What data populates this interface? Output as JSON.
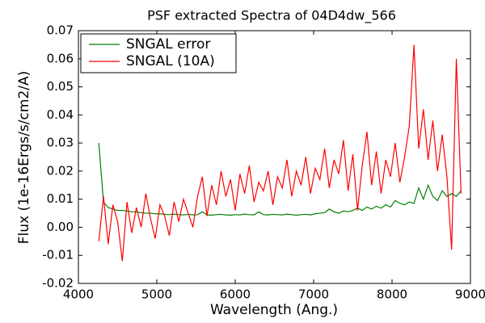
{
  "chart_data": {
    "type": "line",
    "title": "PSF extracted Spectra of 04D4dw_566",
    "xlabel": "Wavelength (Ang.)",
    "ylabel": "Flux (1e-16Ergs/s/cm2/A)",
    "x": [
      4260,
      4320,
      4380,
      4440,
      4500,
      4560,
      4620,
      4680,
      4740,
      4800,
      4860,
      4920,
      4980,
      5040,
      5100,
      5160,
      5220,
      5280,
      5340,
      5400,
      5460,
      5520,
      5580,
      5640,
      5700,
      5760,
      5820,
      5880,
      5940,
      6000,
      6060,
      6120,
      6180,
      6240,
      6300,
      6360,
      6420,
      6480,
      6540,
      6600,
      6660,
      6720,
      6780,
      6840,
      6900,
      6960,
      7020,
      7080,
      7140,
      7200,
      7260,
      7320,
      7380,
      7440,
      7500,
      7560,
      7620,
      7680,
      7740,
      7800,
      7860,
      7920,
      7980,
      8040,
      8100,
      8160,
      8220,
      8280,
      8340,
      8400,
      8460,
      8520,
      8580,
      8640,
      8700,
      8760,
      8820,
      8880
    ],
    "series": [
      {
        "name": "SNGAL error",
        "color": "#008000",
        "values": [
          0.03,
          0.009,
          0.007,
          0.0065,
          0.006,
          0.006,
          0.0058,
          0.0055,
          0.0055,
          0.0052,
          0.005,
          0.005,
          0.0048,
          0.0048,
          0.0046,
          0.0045,
          0.0047,
          0.0045,
          0.0044,
          0.0046,
          0.0044,
          0.0045,
          0.0055,
          0.0044,
          0.0043,
          0.0045,
          0.0046,
          0.0044,
          0.0043,
          0.0045,
          0.0044,
          0.0047,
          0.0045,
          0.0044,
          0.0055,
          0.0045,
          0.0044,
          0.0046,
          0.0045,
          0.0044,
          0.0047,
          0.0045,
          0.0043,
          0.0045,
          0.0046,
          0.0044,
          0.0048,
          0.005,
          0.0052,
          0.0065,
          0.0055,
          0.005,
          0.0058,
          0.0055,
          0.006,
          0.0068,
          0.006,
          0.0072,
          0.0065,
          0.0075,
          0.0068,
          0.008,
          0.0072,
          0.0095,
          0.0085,
          0.008,
          0.009,
          0.0085,
          0.014,
          0.01,
          0.015,
          0.011,
          0.0095,
          0.013,
          0.011,
          0.012,
          0.011,
          0.013
        ]
      },
      {
        "name": "SNGAL (10A)",
        "color": "#ff0000",
        "values": [
          -0.005,
          0.011,
          -0.006,
          0.008,
          0.002,
          -0.012,
          0.009,
          -0.002,
          0.007,
          0.0,
          0.012,
          0.003,
          -0.004,
          0.008,
          0.004,
          -0.003,
          0.009,
          0.002,
          0.01,
          0.005,
          0.0,
          0.011,
          0.018,
          0.004,
          0.015,
          0.008,
          0.02,
          0.011,
          0.017,
          0.006,
          0.019,
          0.012,
          0.022,
          0.009,
          0.016,
          0.013,
          0.02,
          0.008,
          0.018,
          0.014,
          0.024,
          0.011,
          0.02,
          0.015,
          0.025,
          0.012,
          0.021,
          0.017,
          0.028,
          0.014,
          0.024,
          0.019,
          0.031,
          0.013,
          0.026,
          0.006,
          0.022,
          0.034,
          0.015,
          0.027,
          0.012,
          0.024,
          0.018,
          0.03,
          0.016,
          0.025,
          0.036,
          0.065,
          0.028,
          0.042,
          0.024,
          0.038,
          0.02,
          0.033,
          0.018,
          -0.008,
          0.06,
          0.012
        ]
      }
    ],
    "xlim": [
      4000,
      9000
    ],
    "xticks": [
      4000,
      5000,
      6000,
      7000,
      8000,
      9000
    ],
    "ylim": [
      -0.02,
      0.07
    ],
    "yticks": [
      -0.02,
      -0.01,
      {
        "value": 0,
        "label": "0.00"
      },
      0.01,
      0.02,
      0.03,
      0.04,
      0.05,
      0.06,
      0.07
    ],
    "legend": "upper left",
    "title_color": "#ff0000"
  }
}
